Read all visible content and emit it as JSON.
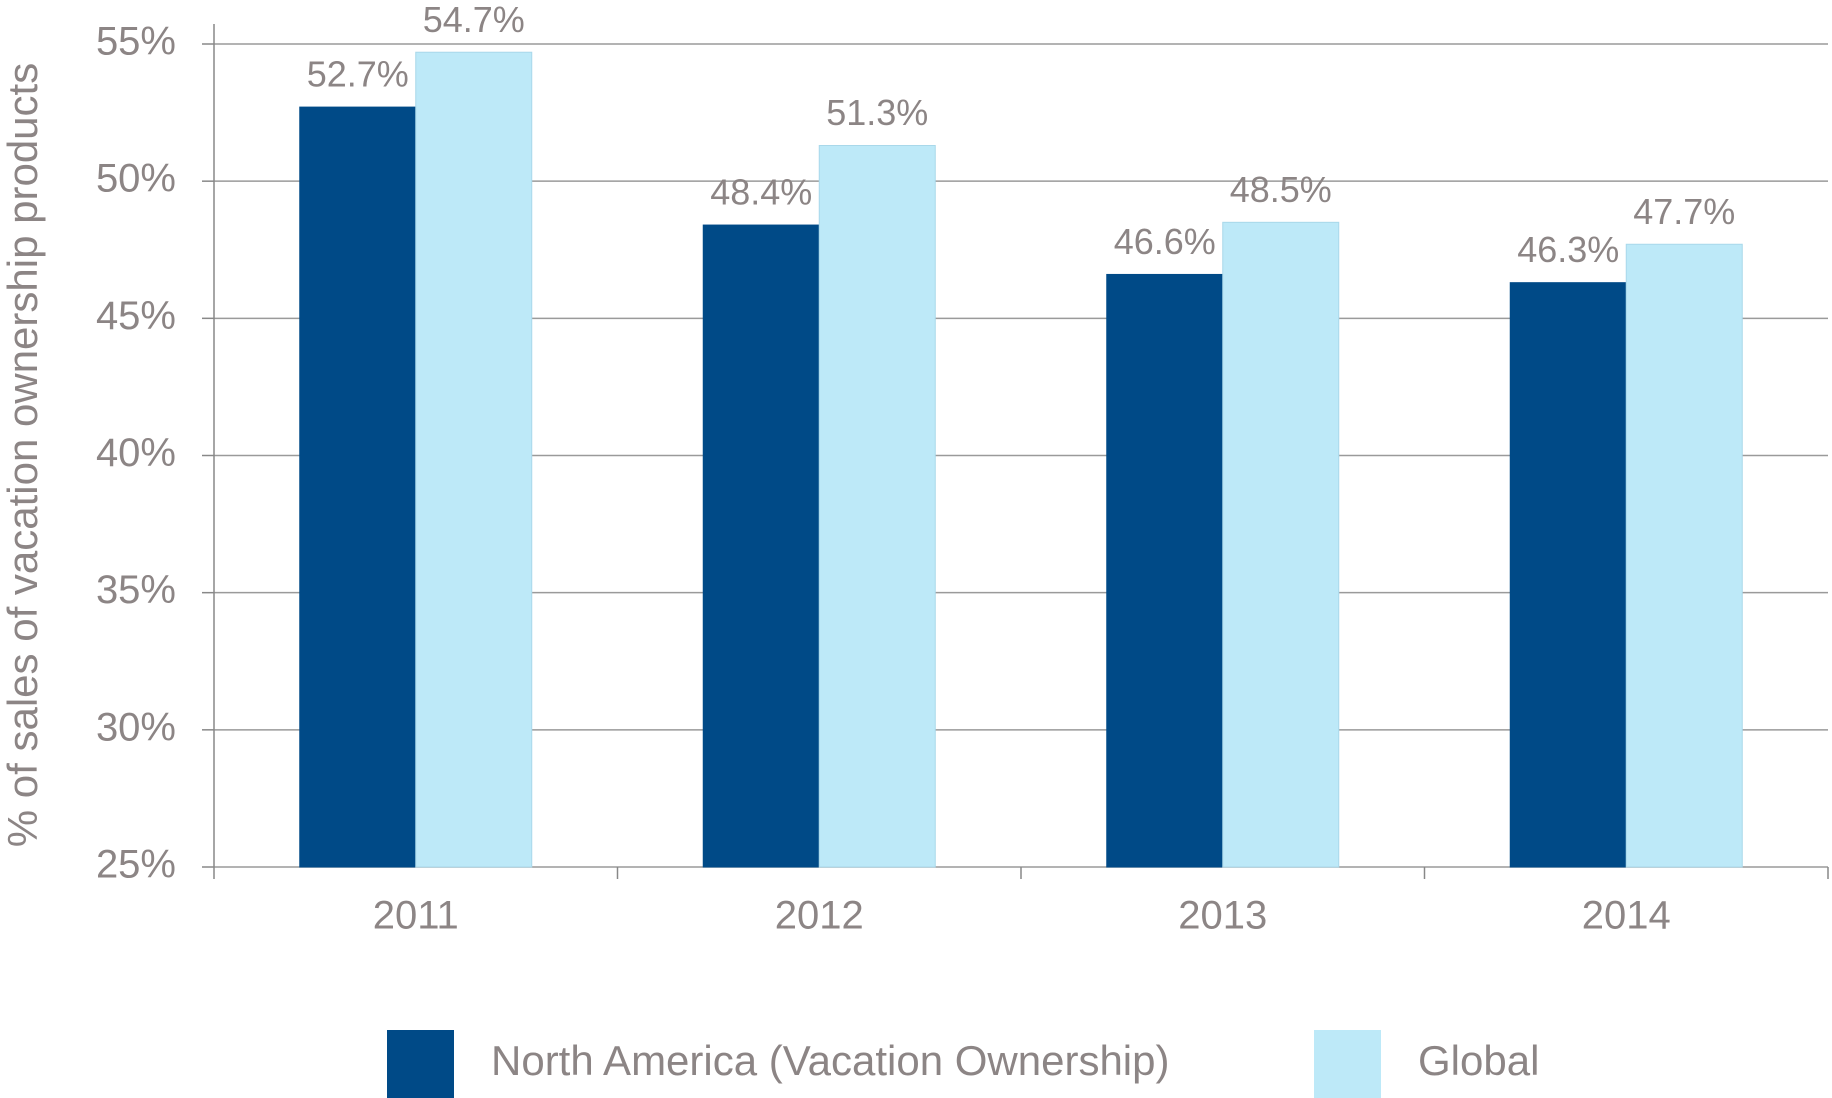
{
  "chart_data": {
    "type": "bar",
    "y_label": "% of sales of vacation ownership products",
    "categories": [
      "2011",
      "2012",
      "2013",
      "2014"
    ],
    "series": [
      {
        "name": "North America (Vacation Ownership)",
        "color": "#004a87",
        "values": [
          52.7,
          48.4,
          46.6,
          46.3
        ],
        "value_labels": [
          "52.7%",
          "48.4%",
          "46.6%",
          "46.3%"
        ]
      },
      {
        "name": "Global",
        "color": "#bde9f8",
        "values": [
          54.7,
          51.3,
          48.5,
          47.7
        ],
        "value_labels": [
          "54.7%",
          "51.3%",
          "48.5%",
          "47.7%"
        ]
      }
    ],
    "ylim": [
      25,
      55
    ],
    "yticks": [
      {
        "value": 25,
        "label": "25%"
      },
      {
        "value": 30,
        "label": "30%"
      },
      {
        "value": 35,
        "label": "35%"
      },
      {
        "value": 40,
        "label": "40%"
      },
      {
        "value": 45,
        "label": "45%"
      },
      {
        "value": 50,
        "label": "50%"
      },
      {
        "value": 55,
        "label": "55%"
      }
    ],
    "grid": true,
    "legend": "bottom"
  }
}
